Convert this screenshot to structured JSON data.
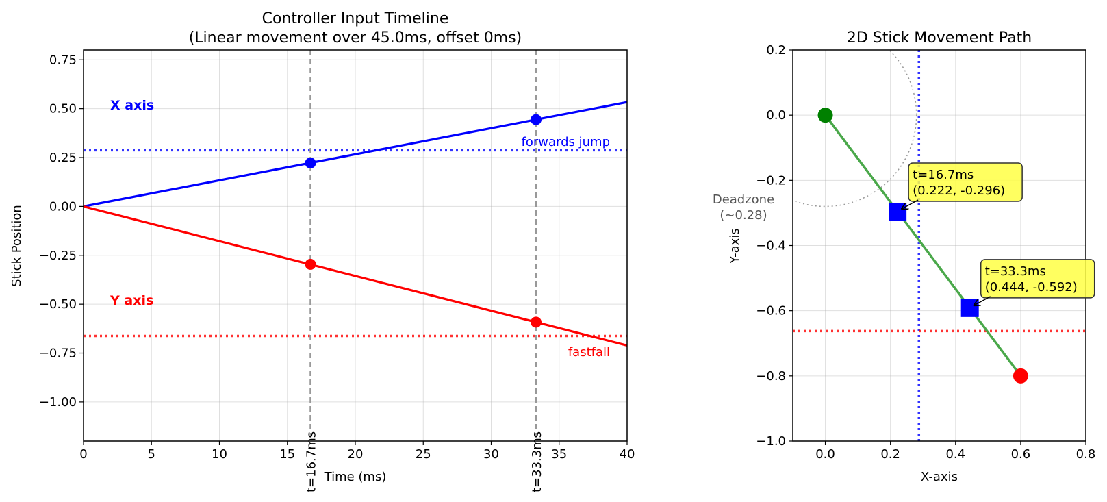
{
  "chart_data": [
    {
      "type": "line",
      "title": "Controller Input Timeline",
      "subtitle": "(Linear movement over 45.0ms, offset 0ms)",
      "xlabel": "Time (ms)",
      "ylabel": "Stick Position",
      "xlim": [
        0,
        40
      ],
      "ylim": [
        -1.2,
        0.8
      ],
      "xticks": [
        0,
        5,
        10,
        15,
        20,
        25,
        30,
        35,
        40
      ],
      "xtick_labels": [
        "0",
        "5",
        "10",
        "15",
        "20",
        "25",
        "30",
        "35",
        "40"
      ],
      "yticks": [
        0.75,
        0.5,
        0.25,
        0.0,
        -0.25,
        -0.5,
        -0.75,
        -1.0
      ],
      "ytick_labels": [
        "0.75",
        "0.50",
        "0.25",
        "0.00",
        "−0.25",
        "−0.50",
        "−0.75",
        "−1.00"
      ],
      "grid": true,
      "series": [
        {
          "name": "X axis",
          "color": "#0000ff",
          "x": [
            0,
            45
          ],
          "y": [
            0,
            0.6
          ],
          "markers": [
            [
              16.7,
              0.222
            ],
            [
              33.3,
              0.444
            ]
          ]
        },
        {
          "name": "Y axis",
          "color": "#ff0000",
          "x": [
            0,
            45
          ],
          "y": [
            0,
            -0.8
          ],
          "markers": [
            [
              16.7,
              -0.296
            ],
            [
              33.3,
              -0.592
            ]
          ]
        }
      ],
      "thresholds": [
        {
          "label": "forwards jump",
          "value": 0.2875,
          "color": "#0000ff"
        },
        {
          "label": "fastfall",
          "value": -0.6625,
          "color": "#ff0000"
        }
      ],
      "vlines": [
        {
          "label": "t=16.7ms",
          "x": 16.7
        },
        {
          "label": "t=33.3ms",
          "x": 33.3
        }
      ]
    },
    {
      "type": "line",
      "title": "2D Stick Movement Path",
      "xlabel": "X-axis",
      "ylabel": "Y-axis",
      "xlim": [
        -0.1,
        0.8
      ],
      "ylim": [
        -1.0,
        0.2
      ],
      "xticks": [
        0.0,
        0.2,
        0.4,
        0.6,
        0.8
      ],
      "xtick_labels": [
        "0.0",
        "0.2",
        "0.4",
        "0.6",
        "0.8"
      ],
      "yticks": [
        0.2,
        0.0,
        -0.2,
        -0.4,
        -0.6,
        -0.8,
        -1.0
      ],
      "ytick_labels": [
        "0.2",
        "0.0",
        "−0.2",
        "−0.4",
        "−0.6",
        "−0.8",
        "−1.0"
      ],
      "grid": true,
      "path": {
        "x": [
          0,
          0.6
        ],
        "y": [
          0,
          -0.8
        ],
        "color": "#4aa84a"
      },
      "start": {
        "x": 0,
        "y": 0,
        "color": "#008000"
      },
      "end": {
        "x": 0.6,
        "y": -0.8,
        "color": "#ff0000"
      },
      "points": [
        {
          "x": 0.222,
          "y": -0.296,
          "label_line1": "t=16.7ms",
          "label_line2": "(0.222, -0.296)"
        },
        {
          "x": 0.444,
          "y": -0.592,
          "label_line1": "t=33.3ms",
          "label_line2": "(0.444, -0.592)"
        }
      ],
      "deadzone": {
        "radius": 0.28,
        "label_line1": "Deadzone",
        "label_line2": "(~0.28)"
      },
      "threshold_x": 0.2875,
      "threshold_y": -0.6625
    }
  ]
}
